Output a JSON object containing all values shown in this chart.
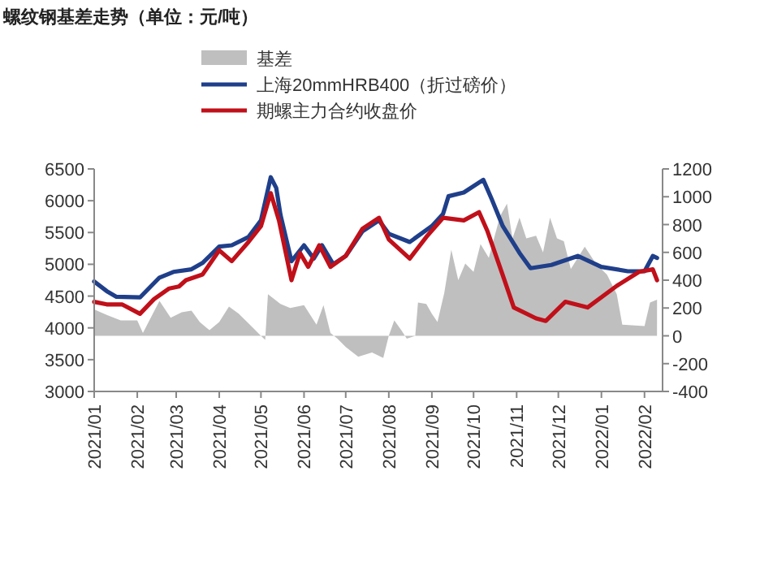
{
  "chart_data": {
    "type": "line",
    "title": "螺纹钢基差走势（单位：元/吨）",
    "legend": "top",
    "grid": false,
    "marker": "none",
    "xlim": [
      "2021-01-01",
      "2022-02-14"
    ],
    "xticks": [
      {
        "value": "2021-01-01",
        "label": "2021/01"
      },
      {
        "value": "2021-02-01",
        "label": "2021/02"
      },
      {
        "value": "2021-03-01",
        "label": "2021/03"
      },
      {
        "value": "2021-04-01",
        "label": "2021/04"
      },
      {
        "value": "2021-05-01",
        "label": "2021/05"
      },
      {
        "value": "2021-06-01",
        "label": "2021/06"
      },
      {
        "value": "2021-07-01",
        "label": "2021/07"
      },
      {
        "value": "2021-08-01",
        "label": "2021/08"
      },
      {
        "value": "2021-09-01",
        "label": "2021/09"
      },
      {
        "value": "2021-10-01",
        "label": "2021/10"
      },
      {
        "value": "2021-11-01",
        "label": "2021/11"
      },
      {
        "value": "2021-12-01",
        "label": "2021/12"
      },
      {
        "value": "2022-01-01",
        "label": "2022/01"
      },
      {
        "value": "2022-02-01",
        "label": "2022/02"
      }
    ],
    "ylim": [
      3000,
      6500
    ],
    "yticks": [
      3000,
      3500,
      4000,
      4500,
      5000,
      5500,
      6000,
      6500
    ],
    "y2lim": [
      -400,
      1200
    ],
    "y2ticks": [
      -400,
      -200,
      0,
      200,
      400,
      600,
      800,
      1000,
      1200
    ],
    "series": [
      {
        "name": "基差",
        "type": "area",
        "axis": "y2",
        "color": "#bfbfbf",
        "x": [
          "2021-01-01",
          "2021-01-10",
          "2021-01-20",
          "2021-02-01",
          "2021-02-05",
          "2021-02-17",
          "2021-02-25",
          "2021-03-05",
          "2021-03-12",
          "2021-03-18",
          "2021-03-25",
          "2021-04-01",
          "2021-04-08",
          "2021-04-15",
          "2021-04-25",
          "2021-05-01",
          "2021-05-04",
          "2021-05-06",
          "2021-05-15",
          "2021-05-22",
          "2021-06-01",
          "2021-06-10",
          "2021-06-15",
          "2021-06-20",
          "2021-06-25",
          "2021-07-01",
          "2021-07-10",
          "2021-07-20",
          "2021-07-28",
          "2021-08-01",
          "2021-08-05",
          "2021-08-10",
          "2021-08-14",
          "2021-08-20",
          "2021-08-22",
          "2021-08-28",
          "2021-09-01",
          "2021-09-05",
          "2021-09-10",
          "2021-09-15",
          "2021-09-20",
          "2021-09-25",
          "2021-10-01",
          "2021-10-06",
          "2021-10-12",
          "2021-10-20",
          "2021-10-25",
          "2021-10-29",
          "2021-11-03",
          "2021-11-08",
          "2021-11-15",
          "2021-11-20",
          "2021-11-25",
          "2021-11-30",
          "2021-12-05",
          "2021-12-10",
          "2021-12-20",
          "2021-12-28",
          "2022-01-05",
          "2022-01-12",
          "2022-01-16",
          "2022-02-01",
          "2022-02-05",
          "2022-02-10"
        ],
        "values": [
          190,
          150,
          110,
          110,
          20,
          250,
          130,
          170,
          180,
          100,
          40,
          100,
          210,
          160,
          60,
          0,
          -30,
          300,
          230,
          200,
          220,
          80,
          220,
          20,
          -20,
          -80,
          -150,
          -120,
          -160,
          0,
          110,
          40,
          -20,
          0,
          240,
          230,
          160,
          100,
          310,
          620,
          400,
          520,
          460,
          660,
          560,
          860,
          950,
          700,
          850,
          700,
          720,
          600,
          850,
          700,
          680,
          480,
          640,
          520,
          440,
          300,
          80,
          70,
          240,
          260
        ]
      },
      {
        "name": "上海20mmHRB400（折过磅价）",
        "color": "#1f3f8a",
        "x": [
          "2021-01-01",
          "2021-01-10",
          "2021-01-17",
          "2021-02-03",
          "2021-02-17",
          "2021-02-27",
          "2021-03-12",
          "2021-03-20",
          "2021-04-01",
          "2021-04-10",
          "2021-04-22",
          "2021-05-01",
          "2021-05-08",
          "2021-05-12",
          "2021-05-15",
          "2021-05-23",
          "2021-06-01",
          "2021-06-08",
          "2021-06-14",
          "2021-06-22",
          "2021-07-01",
          "2021-07-13",
          "2021-07-25",
          "2021-08-01",
          "2021-08-16",
          "2021-09-01",
          "2021-09-09",
          "2021-09-13",
          "2021-09-24",
          "2021-10-08",
          "2021-10-14",
          "2021-10-22",
          "2021-11-03",
          "2021-11-11",
          "2021-11-26",
          "2021-12-15",
          "2022-01-01",
          "2022-01-20",
          "2022-02-01",
          "2022-02-07",
          "2022-02-10"
        ],
        "values": [
          4730,
          4580,
          4490,
          4480,
          4790,
          4880,
          4920,
          5020,
          5280,
          5300,
          5430,
          5690,
          6370,
          6200,
          5780,
          5050,
          5300,
          5090,
          5300,
          5000,
          5130,
          5520,
          5690,
          5480,
          5350,
          5600,
          5790,
          6070,
          6130,
          6330,
          6030,
          5600,
          5180,
          4940,
          4990,
          5130,
          4960,
          4890,
          4890,
          5130,
          5100
        ]
      },
      {
        "name": "期螺主力合约收盘价",
        "color": "#c0101a",
        "x": [
          "2021-01-01",
          "2021-01-10",
          "2021-01-21",
          "2021-02-03",
          "2021-02-13",
          "2021-02-24",
          "2021-03-03",
          "2021-03-08",
          "2021-03-20",
          "2021-04-01",
          "2021-04-10",
          "2021-04-22",
          "2021-05-01",
          "2021-05-08",
          "2021-05-14",
          "2021-05-23",
          "2021-05-29",
          "2021-06-04",
          "2021-06-12",
          "2021-06-20",
          "2021-07-01",
          "2021-07-13",
          "2021-07-25",
          "2021-08-01",
          "2021-08-16",
          "2021-08-28",
          "2021-09-09",
          "2021-09-24",
          "2021-10-05",
          "2021-10-11",
          "2021-10-22",
          "2021-10-30",
          "2021-11-15",
          "2021-11-22",
          "2021-12-06",
          "2021-12-22",
          "2022-01-12",
          "2022-01-28",
          "2022-02-07",
          "2022-02-10"
        ],
        "values": [
          4410,
          4370,
          4370,
          4220,
          4450,
          4620,
          4650,
          4750,
          4840,
          5220,
          5050,
          5350,
          5600,
          6120,
          5690,
          4750,
          5180,
          4960,
          5300,
          4960,
          5130,
          5560,
          5730,
          5390,
          5090,
          5430,
          5730,
          5690,
          5820,
          5520,
          4830,
          4320,
          4150,
          4110,
          4410,
          4320,
          4660,
          4880,
          4920,
          4750
        ]
      }
    ]
  }
}
